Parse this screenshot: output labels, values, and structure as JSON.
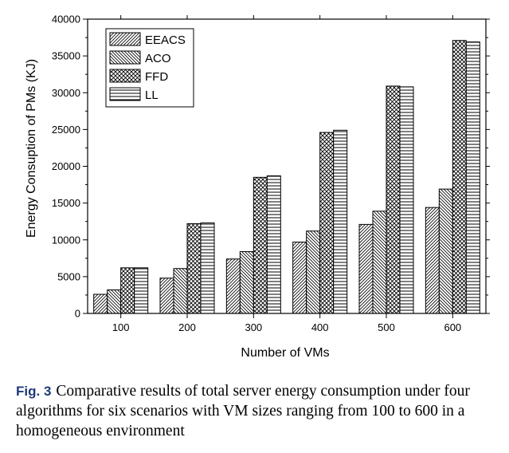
{
  "chart_data": {
    "type": "bar",
    "categories": [
      "100",
      "200",
      "300",
      "400",
      "500",
      "600"
    ],
    "series": [
      {
        "name": "EEACS",
        "pattern": "diag-right",
        "values": [
          2600,
          4800,
          7400,
          9700,
          12100,
          14400
        ]
      },
      {
        "name": "ACO",
        "pattern": "diag-left",
        "values": [
          3200,
          6100,
          8400,
          11200,
          13900,
          16900
        ]
      },
      {
        "name": "FFD",
        "pattern": "cross",
        "values": [
          6200,
          12200,
          18500,
          24600,
          30900,
          37100
        ]
      },
      {
        "name": "LL",
        "pattern": "horizontal",
        "values": [
          6200,
          12300,
          18700,
          24900,
          30800,
          36900
        ]
      }
    ],
    "xlabel": "Number of VMs",
    "ylabel": "Energy Consuption of PMs (KJ)",
    "ylim": [
      0,
      40000
    ],
    "yticks": [
      0,
      5000,
      10000,
      15000,
      20000,
      25000,
      30000,
      35000,
      40000
    ],
    "grid": false,
    "legend_position": "top-left"
  },
  "caption": {
    "label": "Fig. 3",
    "text": "Comparative results of total server energy consumption under four algorithms for six scenarios with VM sizes ranging from 100 to 600 in a homogeneous environment"
  }
}
